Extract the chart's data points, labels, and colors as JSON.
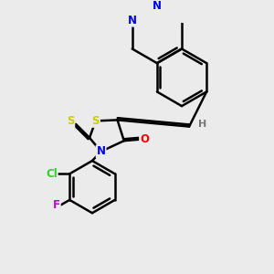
{
  "background_color": "#ebebeb",
  "atom_colors": {
    "N": "#0000ff",
    "O": "#ff0000",
    "S": "#cccc00",
    "Cl": "#33cc33",
    "F": "#cc00cc",
    "H": "#777777",
    "C": "#000000"
  },
  "bond_color": "#000000",
  "bond_width": 1.8,
  "fig_size": [
    3.0,
    3.0
  ],
  "dpi": 100
}
